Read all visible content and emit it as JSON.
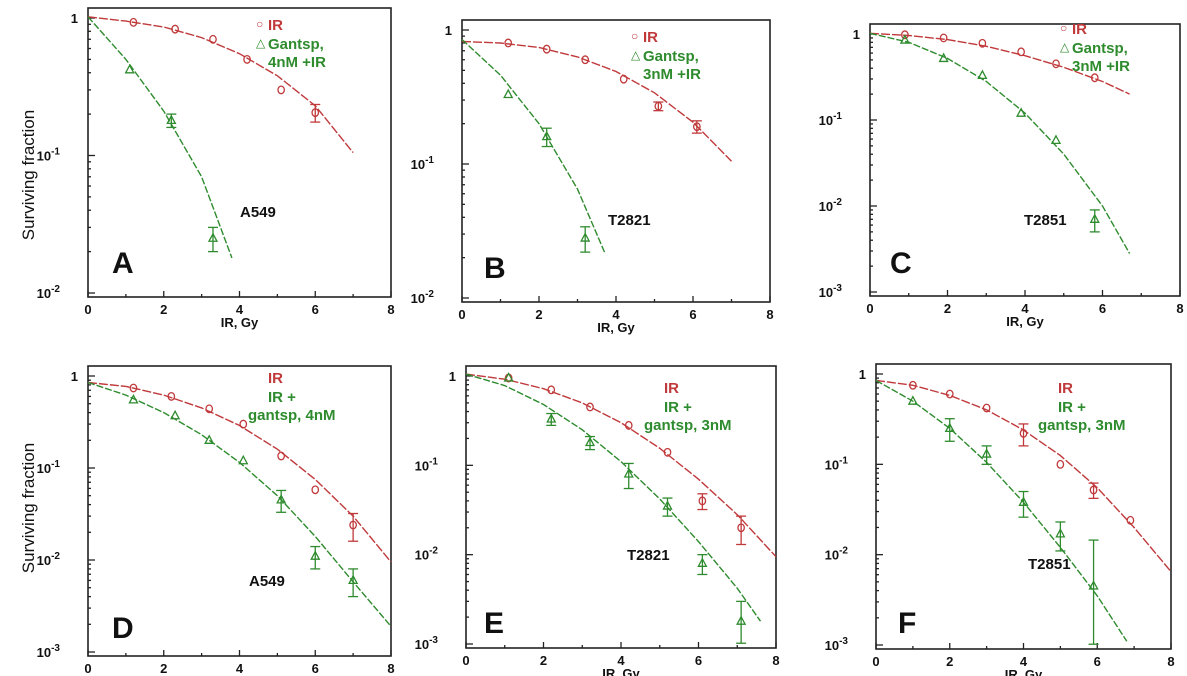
{
  "figure": {
    "ylabel": "Surviving fraction",
    "xlabel": "IR, Gy",
    "colors": {
      "control": "#c0393b",
      "treated": "#2e8b2e",
      "axis": "#222222"
    }
  },
  "chart_data": [
    {
      "type": "scatter",
      "panel": "A",
      "cell_line": "A549",
      "xlim": [
        0,
        8
      ],
      "ylim": [
        0.01,
        1
      ],
      "yscale": "log",
      "xticks": [
        "0",
        "2",
        "4",
        "6",
        "8"
      ],
      "yticks": [
        {
          "v": 1,
          "label": "1",
          "exp": ""
        },
        {
          "v": 0.1,
          "label": "10",
          "exp": "-1"
        },
        {
          "v": 0.01,
          "label": "10",
          "exp": "-2"
        }
      ],
      "legend": [
        "IR",
        "Gantsp,",
        "4nM +IR"
      ],
      "series": [
        {
          "name": "IR",
          "color": "#c0393b",
          "marker": "circle",
          "points": [
            [
              1.2,
              0.93
            ],
            [
              2.3,
              0.83
            ],
            [
              3.3,
              0.7
            ],
            [
              4.2,
              0.5
            ],
            [
              5.1,
              0.3
            ],
            [
              6.0,
              0.205
            ]
          ],
          "errors": [
            0,
            0,
            0,
            0,
            0,
            0.03
          ],
          "fit": [
            [
              0,
              1.02
            ],
            [
              1,
              0.95
            ],
            [
              2,
              0.86
            ],
            [
              3,
              0.72
            ],
            [
              4,
              0.55
            ],
            [
              5,
              0.38
            ],
            [
              6,
              0.23
            ],
            [
              7,
              0.105
            ]
          ]
        },
        {
          "name": "Gantsp, 4nM +IR",
          "color": "#2e8b2e",
          "marker": "triangle",
          "points": [
            [
              1.1,
              0.42
            ],
            [
              2.2,
              0.18
            ],
            [
              3.3,
              0.025
            ]
          ],
          "errors": [
            0,
            0.02,
            0.005
          ],
          "fit": [
            [
              0,
              1.02
            ],
            [
              1,
              0.5
            ],
            [
              2,
              0.21
            ],
            [
              3,
              0.07
            ],
            [
              3.8,
              0.018
            ]
          ]
        }
      ]
    },
    {
      "type": "scatter",
      "panel": "B",
      "cell_line": "T2821",
      "xlim": [
        0,
        8
      ],
      "ylim": [
        0.01,
        1
      ],
      "yscale": "log",
      "xticks": [
        "0",
        "2",
        "4",
        "6",
        "8"
      ],
      "yticks": [
        {
          "v": 1,
          "label": "1",
          "exp": ""
        },
        {
          "v": 0.1,
          "label": "10",
          "exp": "-1"
        },
        {
          "v": 0.01,
          "label": "10",
          "exp": "-2"
        }
      ],
      "legend": [
        "IR",
        "Gantsp,",
        "3nM +IR"
      ],
      "series": [
        {
          "name": "IR",
          "color": "#c0393b",
          "marker": "circle",
          "points": [
            [
              1.2,
              0.8
            ],
            [
              2.2,
              0.72
            ],
            [
              3.2,
              0.6
            ],
            [
              4.2,
              0.43
            ],
            [
              5.1,
              0.27
            ],
            [
              6.1,
              0.19
            ]
          ],
          "errors": [
            0,
            0,
            0,
            0,
            0.02,
            0.02
          ],
          "fit": [
            [
              0,
              0.82
            ],
            [
              1,
              0.8
            ],
            [
              2,
              0.74
            ],
            [
              3,
              0.63
            ],
            [
              4,
              0.49
            ],
            [
              5,
              0.34
            ],
            [
              6,
              0.205
            ],
            [
              7,
              0.105
            ]
          ]
        },
        {
          "name": "Gantsp, 3nM +IR",
          "color": "#2e8b2e",
          "marker": "triangle",
          "points": [
            [
              1.2,
              0.33
            ],
            [
              2.2,
              0.16
            ],
            [
              3.2,
              0.028
            ]
          ],
          "errors": [
            0,
            0.025,
            0.006
          ],
          "fit": [
            [
              0,
              0.85
            ],
            [
              1,
              0.46
            ],
            [
              2,
              0.2
            ],
            [
              3,
              0.065
            ],
            [
              3.7,
              0.022
            ]
          ]
        }
      ]
    },
    {
      "type": "scatter",
      "panel": "C",
      "cell_line": "T2851",
      "xlim": [
        0,
        8
      ],
      "ylim": [
        0.001,
        1
      ],
      "yscale": "log",
      "xticks": [
        "0",
        "2",
        "4",
        "6",
        "8"
      ],
      "yticks": [
        {
          "v": 1,
          "label": "1",
          "exp": ""
        },
        {
          "v": 0.1,
          "label": "10",
          "exp": "-1"
        },
        {
          "v": 0.01,
          "label": "10",
          "exp": "-2"
        },
        {
          "v": 0.001,
          "label": "10",
          "exp": "-3"
        }
      ],
      "legend": [
        "IR",
        "Gantsp,",
        "3nM +IR"
      ],
      "series": [
        {
          "name": "IR",
          "color": "#c0393b",
          "marker": "circle",
          "points": [
            [
              0.9,
              0.98
            ],
            [
              1.9,
              0.9
            ],
            [
              2.9,
              0.78
            ],
            [
              3.9,
              0.62
            ],
            [
              4.8,
              0.45
            ],
            [
              5.8,
              0.31
            ]
          ],
          "errors": [
            0,
            0,
            0,
            0,
            0,
            0
          ],
          "fit": [
            [
              0,
              1.02
            ],
            [
              1,
              0.96
            ],
            [
              2,
              0.86
            ],
            [
              3,
              0.72
            ],
            [
              4,
              0.56
            ],
            [
              5,
              0.41
            ],
            [
              6,
              0.28
            ],
            [
              6.7,
              0.2
            ]
          ]
        },
        {
          "name": "Gantsp, 3nM +IR",
          "color": "#2e8b2e",
          "marker": "triangle",
          "points": [
            [
              0.9,
              0.85
            ],
            [
              1.9,
              0.52
            ],
            [
              2.9,
              0.33
            ],
            [
              3.9,
              0.12
            ],
            [
              4.8,
              0.058
            ],
            [
              5.8,
              0.007
            ]
          ],
          "errors": [
            0,
            0,
            0,
            0,
            0,
            0.002
          ],
          "fit": [
            [
              0,
              1.02
            ],
            [
              1,
              0.8
            ],
            [
              2,
              0.52
            ],
            [
              3,
              0.28
            ],
            [
              4,
              0.12
            ],
            [
              5,
              0.04
            ],
            [
              6,
              0.01
            ],
            [
              6.7,
              0.0028
            ]
          ]
        }
      ]
    },
    {
      "type": "scatter",
      "panel": "D",
      "cell_line": "A549",
      "xlim": [
        0,
        8
      ],
      "ylim": [
        0.001,
        1
      ],
      "yscale": "log",
      "xticks": [
        "0",
        "2",
        "4",
        "6",
        "8"
      ],
      "yticks": [
        {
          "v": 1,
          "label": "1",
          "exp": ""
        },
        {
          "v": 0.1,
          "label": "10",
          "exp": "-1"
        },
        {
          "v": 0.01,
          "label": "10",
          "exp": "-2"
        },
        {
          "v": 0.001,
          "label": "10",
          "exp": "-3"
        }
      ],
      "legend": [
        "IR",
        "IR +",
        "gantsp, 4nM"
      ],
      "series": [
        {
          "name": "IR",
          "color": "#c0393b",
          "marker": "circle",
          "points": [
            [
              1.2,
              0.74
            ],
            [
              2.2,
              0.6
            ],
            [
              3.2,
              0.44
            ],
            [
              4.1,
              0.3
            ],
            [
              5.1,
              0.135
            ],
            [
              6.0,
              0.058
            ],
            [
              7.0,
              0.024
            ]
          ],
          "errors": [
            0,
            0,
            0,
            0,
            0,
            0,
            0.008
          ],
          "fit": [
            [
              0,
              0.85
            ],
            [
              1,
              0.77
            ],
            [
              2,
              0.62
            ],
            [
              3,
              0.45
            ],
            [
              4,
              0.29
            ],
            [
              5,
              0.16
            ],
            [
              6,
              0.075
            ],
            [
              7,
              0.03
            ],
            [
              8,
              0.0095
            ]
          ]
        },
        {
          "name": "IR + gantsp, 4nM",
          "color": "#2e8b2e",
          "marker": "triangle",
          "points": [
            [
              1.2,
              0.55
            ],
            [
              2.3,
              0.37
            ],
            [
              3.2,
              0.2
            ],
            [
              4.1,
              0.12
            ],
            [
              5.1,
              0.045
            ],
            [
              6.0,
              0.011
            ],
            [
              7.0,
              0.006
            ]
          ],
          "errors": [
            0,
            0,
            0,
            0,
            0.012,
            0.003,
            0.002
          ],
          "fit": [
            [
              0,
              0.85
            ],
            [
              1,
              0.62
            ],
            [
              2,
              0.4
            ],
            [
              3,
              0.23
            ],
            [
              4,
              0.115
            ],
            [
              5,
              0.05
            ],
            [
              6,
              0.018
            ],
            [
              7,
              0.0058
            ],
            [
              8,
              0.0019
            ]
          ]
        }
      ]
    },
    {
      "type": "scatter",
      "panel": "E",
      "cell_line": "T2821",
      "xlim": [
        0,
        8
      ],
      "ylim": [
        0.001,
        1
      ],
      "yscale": "log",
      "xticks": [
        "0",
        "2",
        "4",
        "6",
        "8"
      ],
      "yticks": [
        {
          "v": 1,
          "label": "1",
          "exp": ""
        },
        {
          "v": 0.1,
          "label": "10",
          "exp": "-1"
        },
        {
          "v": 0.01,
          "label": "10",
          "exp": "-2"
        },
        {
          "v": 0.001,
          "label": "10",
          "exp": "-3"
        }
      ],
      "legend": [
        "IR",
        "IR +",
        "gantsp, 3nM"
      ],
      "series": [
        {
          "name": "IR",
          "color": "#c0393b",
          "marker": "circle",
          "points": [
            [
              1.1,
              0.95
            ],
            [
              2.2,
              0.7
            ],
            [
              3.2,
              0.45
            ],
            [
              4.2,
              0.28
            ],
            [
              5.2,
              0.14
            ],
            [
              6.1,
              0.04
            ],
            [
              7.1,
              0.02
            ]
          ],
          "errors": [
            0,
            0,
            0,
            0,
            0,
            0.008,
            0.007
          ],
          "fit": [
            [
              0,
              1.05
            ],
            [
              1,
              0.92
            ],
            [
              2,
              0.72
            ],
            [
              3,
              0.5
            ],
            [
              4,
              0.3
            ],
            [
              5,
              0.155
            ],
            [
              6,
              0.07
            ],
            [
              7,
              0.028
            ],
            [
              8,
              0.0095
            ]
          ]
        },
        {
          "name": "IR + gantsp, 3nM",
          "color": "#2e8b2e",
          "marker": "triangle",
          "points": [
            [
              1.1,
              0.95
            ],
            [
              2.2,
              0.33
            ],
            [
              3.2,
              0.18
            ],
            [
              4.2,
              0.08
            ],
            [
              5.2,
              0.035
            ],
            [
              6.1,
              0.008
            ],
            [
              7.1,
              0.0018
            ]
          ],
          "errors": [
            0,
            0.05,
            0.03,
            0.025,
            0.008,
            0.002,
            0.0012
          ],
          "fit": [
            [
              0,
              1.05
            ],
            [
              1,
              0.78
            ],
            [
              2,
              0.48
            ],
            [
              3,
              0.25
            ],
            [
              4,
              0.11
            ],
            [
              5,
              0.042
            ],
            [
              6,
              0.014
            ],
            [
              7,
              0.0042
            ],
            [
              7.6,
              0.0018
            ]
          ]
        }
      ]
    },
    {
      "type": "scatter",
      "panel": "F",
      "cell_line": "T2851",
      "xlim": [
        0,
        8
      ],
      "ylim": [
        0.001,
        1
      ],
      "yscale": "log",
      "xticks": [
        "0",
        "2",
        "4",
        "6",
        "8"
      ],
      "yticks": [
        {
          "v": 1,
          "label": "1",
          "exp": ""
        },
        {
          "v": 0.1,
          "label": "10",
          "exp": "-1"
        },
        {
          "v": 0.01,
          "label": "10",
          "exp": "-2"
        },
        {
          "v": 0.001,
          "label": "10",
          "exp": "-3"
        }
      ],
      "legend": [
        "IR",
        "IR +",
        "gantsp, 3nM"
      ],
      "series": [
        {
          "name": "IR",
          "color": "#c0393b",
          "marker": "circle",
          "points": [
            [
              1.0,
              0.75
            ],
            [
              2.0,
              0.6
            ],
            [
              3.0,
              0.42
            ],
            [
              4.0,
              0.22
            ],
            [
              5.0,
              0.1
            ],
            [
              5.9,
              0.052
            ],
            [
              6.9,
              0.024
            ]
          ],
          "errors": [
            0,
            0,
            0,
            0.06,
            0,
            0.01,
            0
          ],
          "fit": [
            [
              0,
              0.85
            ],
            [
              1,
              0.75
            ],
            [
              2,
              0.58
            ],
            [
              3,
              0.4
            ],
            [
              4,
              0.24
            ],
            [
              5,
              0.125
            ],
            [
              6,
              0.055
            ],
            [
              7,
              0.02
            ],
            [
              8,
              0.0065
            ]
          ]
        },
        {
          "name": "IR + gantsp, 3nM",
          "color": "#2e8b2e",
          "marker": "triangle",
          "points": [
            [
              1.0,
              0.5
            ],
            [
              2.0,
              0.25
            ],
            [
              3.0,
              0.13
            ],
            [
              4.0,
              0.038
            ],
            [
              5.0,
              0.017
            ],
            [
              5.9,
              0.0045
            ]
          ],
          "errors": [
            0,
            0.07,
            0.03,
            0.012,
            0.006,
            0.01
          ],
          "fit": [
            [
              0,
              0.85
            ],
            [
              1,
              0.5
            ],
            [
              2,
              0.25
            ],
            [
              3,
              0.105
            ],
            [
              4,
              0.038
            ],
            [
              5,
              0.012
            ],
            [
              6,
              0.0035
            ],
            [
              6.8,
              0.0011
            ]
          ]
        }
      ]
    }
  ]
}
